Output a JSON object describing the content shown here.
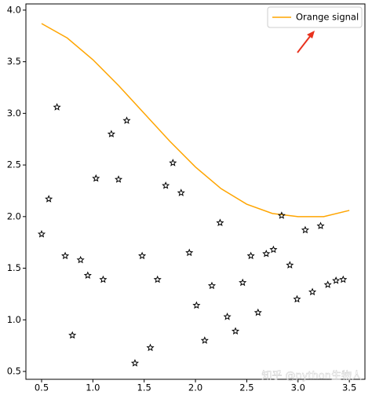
{
  "chart_data": {
    "type": "line",
    "xlim": [
      0.347,
      3.652
    ],
    "ylim": [
      0.424,
      4.06
    ],
    "xticks": [
      {
        "value": 0.5,
        "label": "0.5"
      },
      {
        "value": 1,
        "label": "1.0"
      },
      {
        "value": 1.5,
        "label": "1.5"
      },
      {
        "value": 2,
        "label": "2.0"
      },
      {
        "value": 2.5,
        "label": "2.5"
      },
      {
        "value": 3,
        "label": "3.0"
      },
      {
        "value": 3.5,
        "label": "3.5"
      }
    ],
    "yticks": [
      {
        "value": 0.5,
        "label": "0.5"
      },
      {
        "value": 1,
        "label": "1.0"
      },
      {
        "value": 1.5,
        "label": "1.5"
      },
      {
        "value": 2,
        "label": "2.0"
      },
      {
        "value": 2.5,
        "label": "2.5"
      },
      {
        "value": 3,
        "label": "3.0"
      },
      {
        "value": 3.5,
        "label": "3.5"
      },
      {
        "value": 4,
        "label": "4.0"
      }
    ],
    "legend": "upper right",
    "watermark": "知乎 @python生物人",
    "series": [
      {
        "name": "Orange signal",
        "type": "line",
        "color": "#ffa500",
        "x": [
          0.5,
          0.75,
          1.0,
          1.25,
          1.5,
          1.75,
          2.0,
          2.25,
          2.5,
          2.75,
          3.0,
          3.25,
          3.5
        ],
        "values": [
          3.87,
          3.73,
          3.52,
          3.27,
          3.0,
          2.73,
          2.48,
          2.27,
          2.12,
          2.03,
          2.0,
          2.0,
          2.06
        ]
      },
      {
        "type": "scatter",
        "color": "#000000",
        "x": [
          0.5,
          0.57,
          0.65,
          0.73,
          0.8,
          0.88,
          0.95,
          1.03,
          1.1,
          1.18,
          1.25,
          1.33,
          1.41,
          1.48,
          1.56,
          1.63,
          1.71,
          1.78,
          1.86,
          1.94,
          2.01,
          2.09,
          2.16,
          2.24,
          2.31,
          2.39,
          2.46,
          2.54,
          2.61,
          2.69,
          2.76,
          2.84,
          2.92,
          2.99,
          3.07,
          3.14,
          3.22,
          3.29,
          3.37,
          3.44
        ],
        "values": [
          1.83,
          2.17,
          3.06,
          1.62,
          0.85,
          1.58,
          1.43,
          2.37,
          1.39,
          2.8,
          2.36,
          2.93,
          0.58,
          1.62,
          0.73,
          1.39,
          2.3,
          2.52,
          2.23,
          1.65,
          1.14,
          0.8,
          1.33,
          1.94,
          1.03,
          0.89,
          1.36,
          1.62,
          1.07,
          1.64,
          1.68,
          2.01,
          1.53,
          1.2,
          1.87,
          1.27,
          1.91,
          1.34,
          1.38,
          1.39
        ]
      }
    ]
  }
}
